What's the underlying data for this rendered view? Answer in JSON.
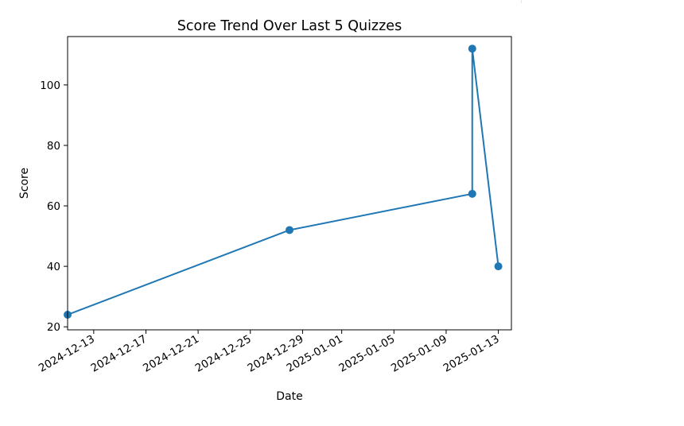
{
  "chart_data": {
    "type": "line",
    "title": "Score Trend Over Last 5 Quizzes",
    "xlabel": "Date",
    "ylabel": "Score",
    "x_axis_type": "date",
    "xlim": [
      "2024-12-11",
      "2025-01-14"
    ],
    "ylim": [
      19,
      116
    ],
    "x_ticks": [
      "2024-12-13",
      "2024-12-17",
      "2024-12-21",
      "2024-12-25",
      "2024-12-29",
      "2025-01-01",
      "2025-01-05",
      "2025-01-09",
      "2025-01-13"
    ],
    "y_ticks": [
      20,
      40,
      60,
      80,
      100
    ],
    "grid": false,
    "legend": "none",
    "marker": "circle",
    "line_color": "#1f77b4",
    "series": [
      {
        "x": [
          "2024-12-11",
          "2024-12-28",
          "2025-01-11",
          "2025-01-11",
          "2025-01-13"
        ],
        "y": [
          24,
          52,
          64,
          112,
          40
        ]
      }
    ]
  }
}
